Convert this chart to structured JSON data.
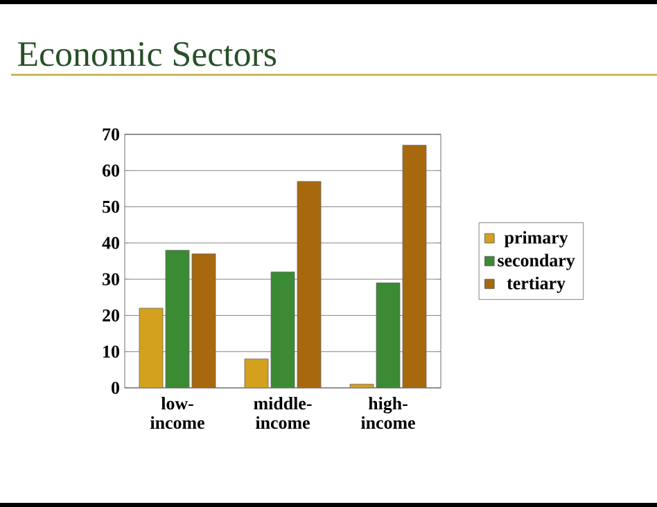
{
  "chart_data": {
    "type": "bar",
    "title": "Economic Sectors",
    "categories": [
      "low-income",
      "middle-income",
      "high-income"
    ],
    "series": [
      {
        "name": "primary",
        "color": "#d4a11e",
        "values": [
          22,
          8,
          1
        ]
      },
      {
        "name": "secondary",
        "color": "#3b8a34",
        "values": [
          38,
          32,
          29
        ]
      },
      {
        "name": "tertiary",
        "color": "#a8690e",
        "values": [
          37,
          57,
          67
        ]
      }
    ],
    "ylim": [
      0,
      70
    ],
    "yticks": [
      0,
      10,
      20,
      30,
      40,
      50,
      60,
      70
    ],
    "grid": "y",
    "legend": "right"
  }
}
